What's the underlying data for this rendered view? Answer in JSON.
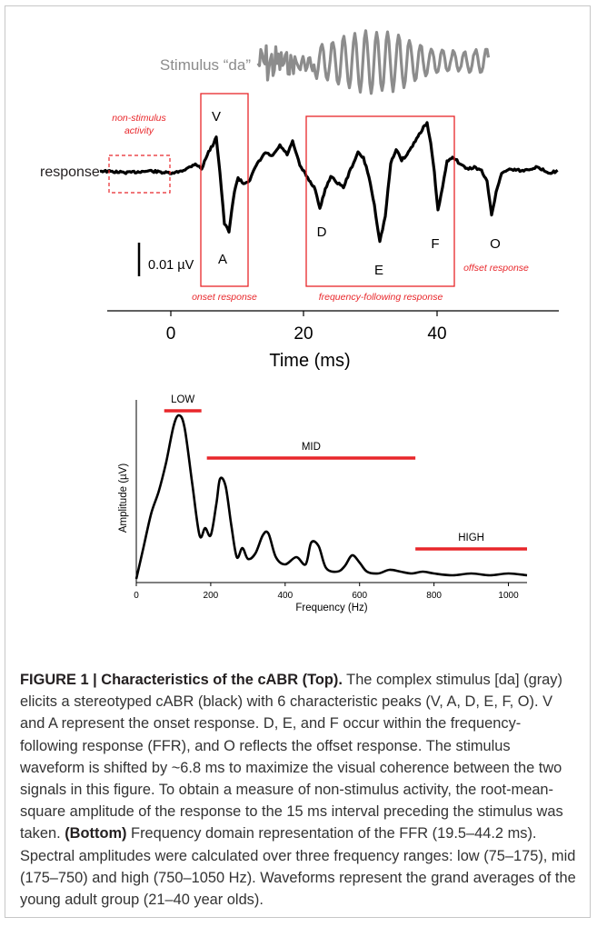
{
  "figure": {
    "top": {
      "stimulus_label": "Stimulus “da”",
      "response_label": "response",
      "nonstim_label_line1": "non-stimulus",
      "nonstim_label_line2": "activity",
      "peaks": [
        "V",
        "A",
        "D",
        "E",
        "F",
        "O"
      ],
      "scale_bar_label": "0.01 µV",
      "onset_label": "onset response",
      "ffr_label": "frequency-following response",
      "offset_label": "offset response",
      "x_ticks": [
        "0",
        "20",
        "40"
      ],
      "xlabel": "Time (ms)"
    },
    "colors": {
      "stimulus": "#8c8c8c",
      "response": "#000000",
      "annotation": "#e8262a"
    }
  },
  "chart_data": {
    "type": "line",
    "title": "",
    "xlabel": "Frequency (Hz)",
    "ylabel": "Amplitude (µV)",
    "xlim": [
      0,
      1050
    ],
    "x_ticks": [
      0,
      200,
      400,
      600,
      800,
      1000
    ],
    "y_ticks": [],
    "grid": false,
    "series": [
      {
        "x": [
          0,
          20,
          40,
          60,
          80,
          100,
          115,
          130,
          150,
          170,
          185,
          200,
          215,
          225,
          240,
          255,
          270,
          285,
          300,
          320,
          340,
          355,
          375,
          400,
          430,
          455,
          470,
          490,
          510,
          540,
          560,
          580,
          600,
          620,
          650,
          680,
          710,
          740,
          770,
          800,
          850,
          900,
          950,
          1000,
          1050
        ],
        "y": [
          0.02,
          0.2,
          0.38,
          0.5,
          0.66,
          0.86,
          0.92,
          0.85,
          0.55,
          0.26,
          0.3,
          0.26,
          0.43,
          0.57,
          0.53,
          0.32,
          0.14,
          0.19,
          0.13,
          0.16,
          0.26,
          0.27,
          0.14,
          0.1,
          0.14,
          0.1,
          0.22,
          0.2,
          0.08,
          0.06,
          0.09,
          0.15,
          0.11,
          0.06,
          0.05,
          0.07,
          0.06,
          0.05,
          0.06,
          0.05,
          0.04,
          0.05,
          0.04,
          0.05,
          0.04
        ]
      }
    ],
    "bands": [
      {
        "label": "LOW",
        "range": [
          75,
          175
        ]
      },
      {
        "label": "MID",
        "range": [
          175,
          750
        ]
      },
      {
        "label": "HIGH",
        "range": [
          750,
          1050
        ]
      }
    ]
  },
  "caption": {
    "label": "FIGURE 1 | Characteristics of the cABR (Top).",
    "text1": " The complex stimulus [da] (gray) elicits a stereotyped cABR (black) with 6 characteristic peaks (V, A, D, E, F, O). V and A represent the onset response. D, E, and F occur within the frequency-following response (FFR), and O reflects the offset response. The stimulus waveform is shifted by ~6.8 ms to maximize the visual coherence between the two signals in this figure. To obtain a measure of non-stimulus activity, the root-mean-square amplitude of the response to the 15 ms interval preceding the stimulus was taken. ",
    "bottom_label": "(Bottom)",
    "text2": " Frequency domain representation of the FFR (19.5–44.2 ms). Spectral amplitudes were calculated over three frequency ranges: low (75–175), mid (175–750) and high (750–1050 Hz). Waveforms represent the grand averages of the young adult group (21–40 year olds)."
  }
}
